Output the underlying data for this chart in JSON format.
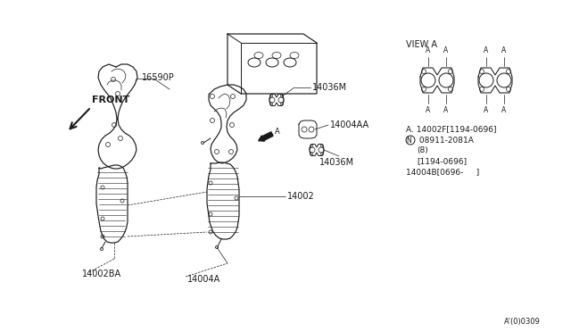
{
  "bg_color": "#f5f5f0",
  "line_color": "#1a1a1a",
  "fig_width": 6.4,
  "fig_height": 3.72,
  "dpi": 100,
  "labels": {
    "front": "FRONT",
    "part_16590P": "16590P",
    "part_14036M_top": "14036M",
    "part_14036M_bot": "14036M",
    "part_14004AA": "14004AA",
    "part_14002": "14002",
    "part_14002BA": "14002BA",
    "part_14004A": "14004A",
    "view_a": "VIEW A",
    "note_line1": "A. 14002F[1194-0696]",
    "note_line2": "N 08911-2081A",
    "note_line3": "(8)",
    "note_line4": "[1194-0696]",
    "note_line5": "14004B[0696-     ]",
    "diagram_ref": "A'(0)0309"
  }
}
